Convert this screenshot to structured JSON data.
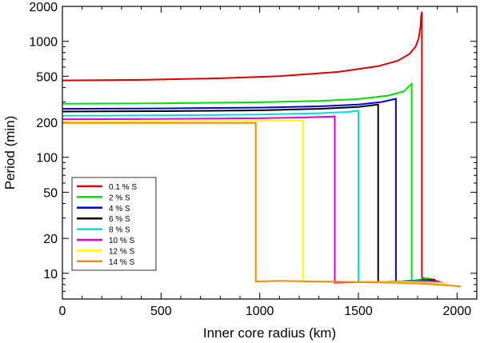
{
  "chart_data": {
    "type": "line",
    "xlabel": "Inner core radius (km)",
    "ylabel": "Period (min)",
    "xlim": [
      0,
      2100
    ],
    "ylim": [
      6,
      2000
    ],
    "yscale": "log",
    "xticks": [
      {
        "value": 0,
        "label": "0"
      },
      {
        "value": 500,
        "label": "500"
      },
      {
        "value": 1000,
        "label": "1000"
      },
      {
        "value": 1500,
        "label": "1500"
      },
      {
        "value": 2000,
        "label": "2000"
      }
    ],
    "yticks": [
      {
        "value": 10,
        "label": "10"
      },
      {
        "value": 20,
        "label": "20"
      },
      {
        "value": 50,
        "label": "50"
      },
      {
        "value": 100,
        "label": "100"
      },
      {
        "value": 200,
        "label": "200"
      },
      {
        "value": 500,
        "label": "500"
      },
      {
        "value": 1000,
        "label": "1000"
      },
      {
        "value": 2000,
        "label": "2000"
      }
    ],
    "series": [
      {
        "name": "0.1 % S",
        "color": "#dd0000",
        "x": [
          0,
          400,
          800,
          1100,
          1400,
          1600,
          1700,
          1760,
          1790,
          1805,
          1815,
          1818,
          1822,
          1822,
          1825,
          1850,
          1870,
          1890
        ],
        "y": [
          460,
          465,
          480,
          500,
          545,
          610,
          680,
          780,
          900,
          1050,
          1350,
          1650,
          1800,
          9.2,
          9.1,
          9.0,
          8.9,
          8.8
        ]
      },
      {
        "name": "2 % S",
        "color": "#00dd00",
        "x": [
          0,
          500,
          1000,
          1300,
          1500,
          1650,
          1730,
          1770,
          1770,
          1800,
          1830,
          1850,
          1870
        ],
        "y": [
          290,
          292,
          298,
          306,
          318,
          340,
          370,
          430,
          8.6,
          8.7,
          8.9,
          9.1,
          8.7
        ]
      },
      {
        "name": "4 % S",
        "color": "#0000dd",
        "x": [
          0,
          500,
          1000,
          1300,
          1500,
          1620,
          1690,
          1690,
          1750,
          1800,
          1850,
          1880,
          1900
        ],
        "y": [
          262,
          264,
          268,
          275,
          285,
          300,
          320,
          8.4,
          8.6,
          8.7,
          8.8,
          8.6,
          8.5
        ]
      },
      {
        "name": "6 % S",
        "color": "#000000",
        "x": [
          0,
          500,
          1000,
          1300,
          1500,
          1600,
          1600,
          1700,
          1800,
          1850,
          1890,
          1910
        ],
        "y": [
          248,
          250,
          254,
          262,
          272,
          285,
          8.4,
          8.5,
          8.6,
          8.7,
          8.6,
          8.5
        ]
      },
      {
        "name": "8 % S",
        "color": "#00dddd",
        "x": [
          0,
          500,
          1000,
          1300,
          1450,
          1500,
          1500,
          1600,
          1700,
          1800,
          1880,
          1920
        ],
        "y": [
          228,
          230,
          234,
          240,
          246,
          252,
          8.4,
          8.4,
          8.5,
          8.6,
          8.5,
          8.4
        ]
      },
      {
        "name": "10 % S",
        "color": "#dd00dd",
        "x": [
          0,
          500,
          1000,
          1250,
          1380,
          1380,
          1500,
          1650,
          1800,
          1880,
          1930
        ],
        "y": [
          213,
          214,
          217,
          221,
          225,
          8.3,
          8.4,
          8.4,
          8.5,
          8.4,
          8.3
        ]
      },
      {
        "name": "12 % S",
        "color": "#ffff00",
        "x": [
          0,
          500,
          1000,
          1220,
          1220,
          1350,
          1500,
          1700,
          1850,
          1950
        ],
        "y": [
          204,
          205,
          206,
          208,
          8.5,
          8.5,
          8.4,
          8.4,
          8.3,
          8.2
        ]
      },
      {
        "name": "14 % S",
        "color": "#ff8800",
        "x": [
          0,
          500,
          980,
          980,
          1100,
          1300,
          1500,
          1700,
          1850,
          1950,
          2020
        ],
        "y": [
          198,
          198,
          198,
          8.5,
          8.6,
          8.5,
          8.4,
          8.3,
          8.1,
          7.9,
          7.7
        ]
      }
    ],
    "legend_position": "bottom-left"
  }
}
